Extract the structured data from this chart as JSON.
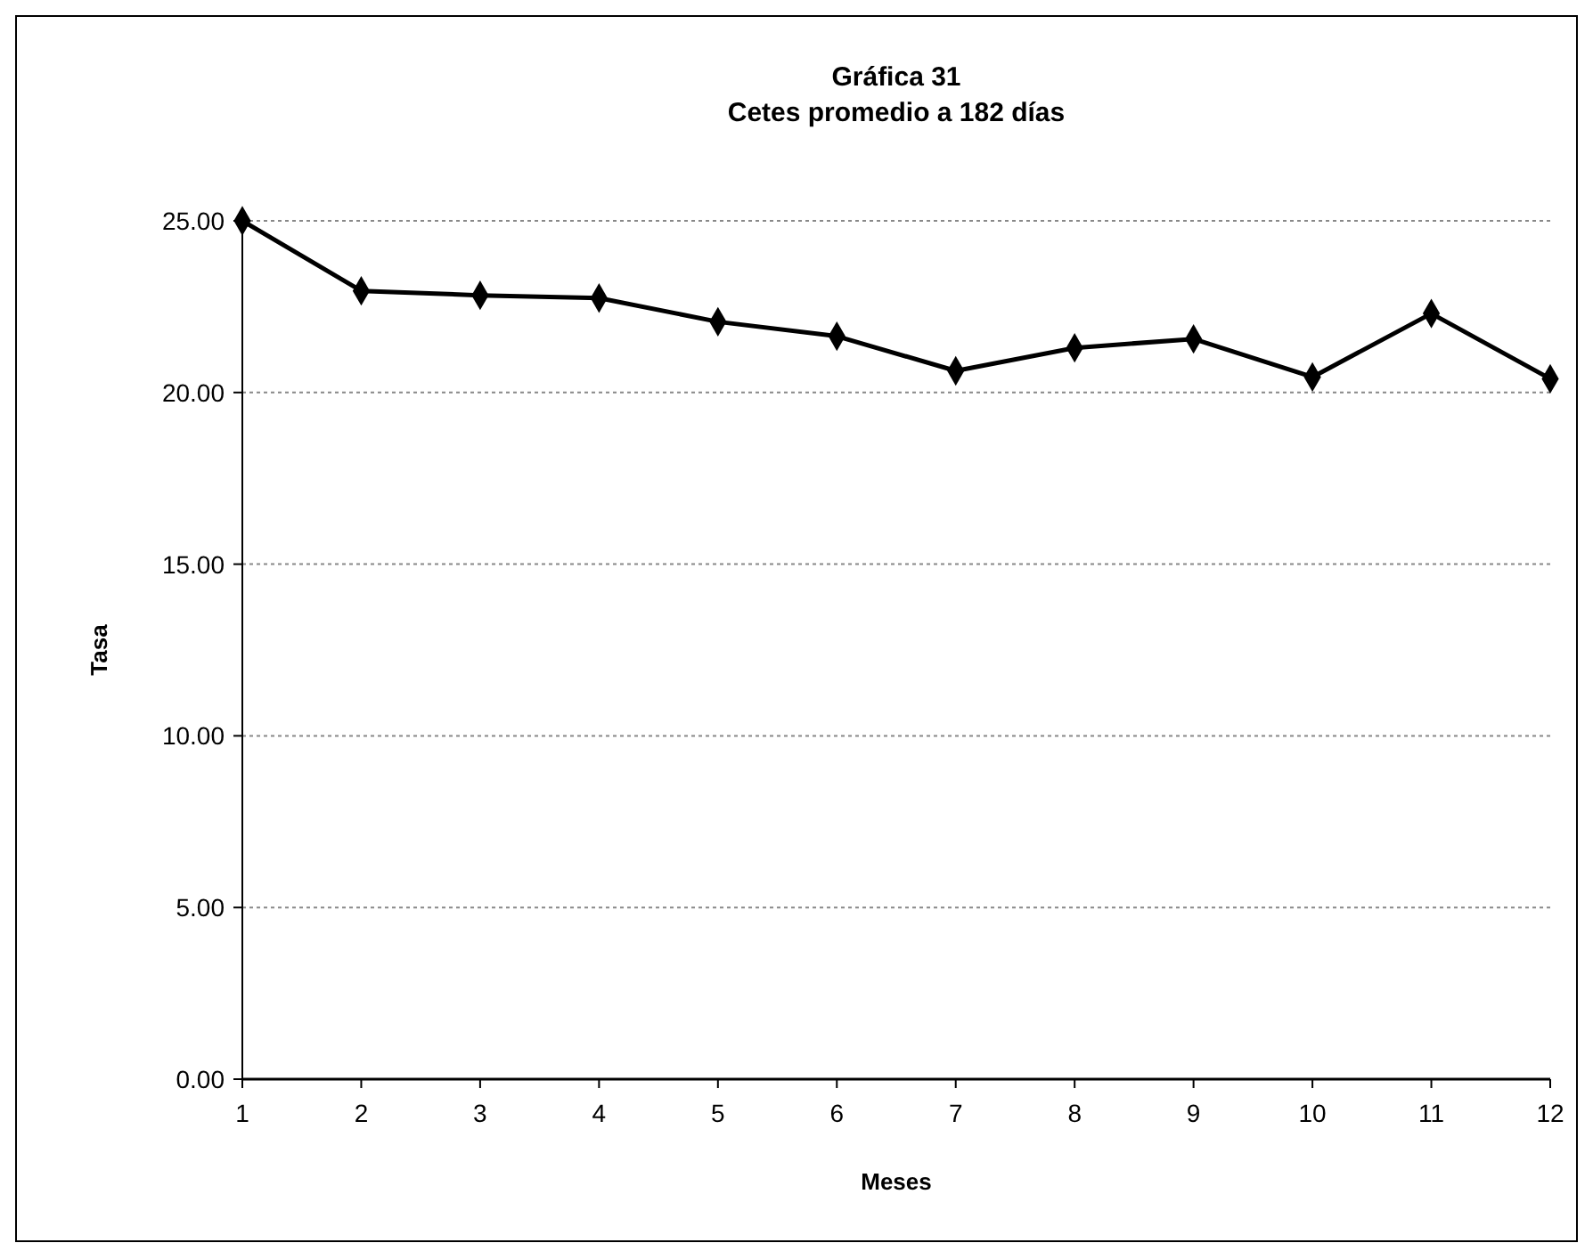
{
  "chart_data": {
    "type": "line",
    "title": "Gráfica 31",
    "subtitle": "Cetes promedio a 182 días",
    "xlabel": "Meses",
    "ylabel": "Tasa",
    "x": [
      1,
      2,
      3,
      4,
      5,
      6,
      7,
      8,
      9,
      10,
      11,
      12
    ],
    "series": [
      {
        "color": "#000000",
        "values": [
          25.0,
          22.96,
          22.83,
          22.75,
          22.06,
          21.64,
          20.63,
          21.3,
          21.56,
          20.45,
          22.3,
          20.4
        ]
      }
    ],
    "xlim": [
      1,
      12
    ],
    "xticks": [
      1,
      2,
      3,
      4,
      5,
      6,
      7,
      8,
      9,
      10,
      11,
      12
    ],
    "ylim": [
      0,
      25
    ],
    "yticks": [
      {
        "value": 0,
        "label": "0.00"
      },
      {
        "value": 5,
        "label": "5.00"
      },
      {
        "value": 10,
        "label": "10.00"
      },
      {
        "value": 15,
        "label": "15.00"
      },
      {
        "value": 20,
        "label": "20.00"
      },
      {
        "value": 25,
        "label": "25.00"
      }
    ],
    "grid": "y",
    "marker": "diamond",
    "line_style": "solid"
  }
}
